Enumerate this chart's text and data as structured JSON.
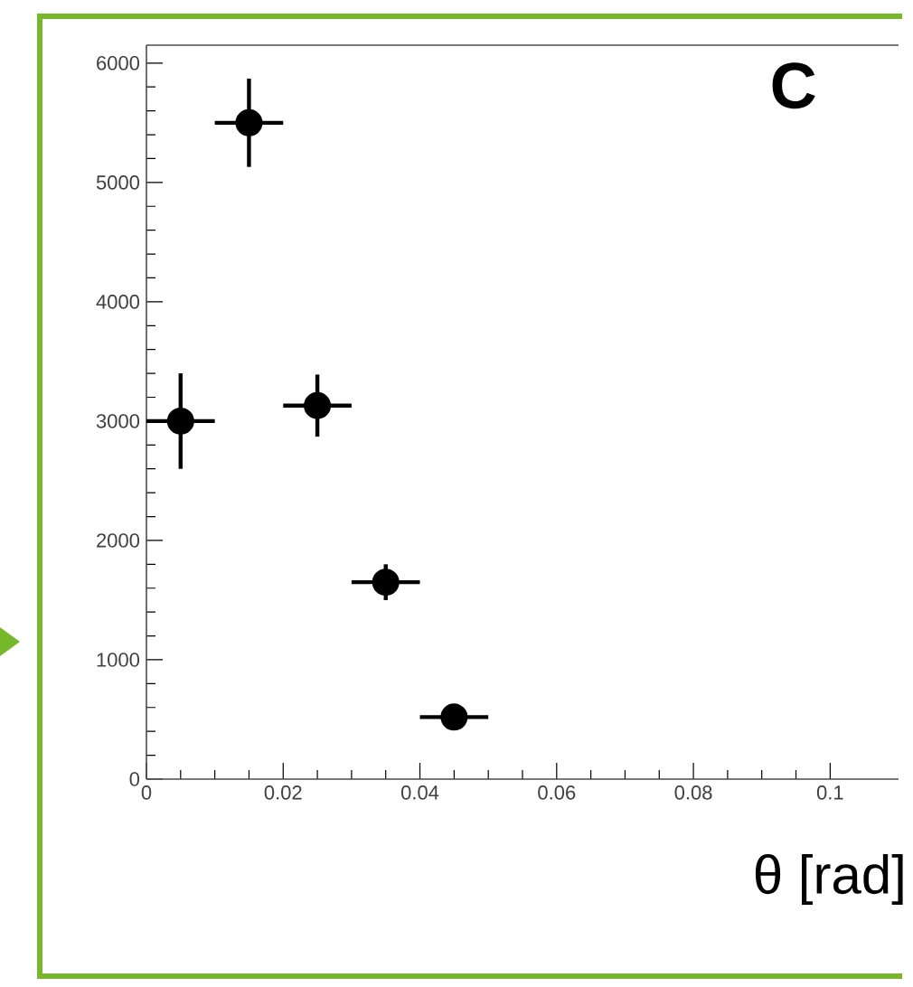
{
  "chart_data": {
    "type": "scatter",
    "x": [
      0.005,
      0.015,
      0.025,
      0.035,
      0.045
    ],
    "values": [
      3000,
      5500,
      3130,
      1650,
      520
    ],
    "errors": [
      400,
      370,
      260,
      150,
      50
    ],
    "xerrors": [
      0.005,
      0.005,
      0.005,
      0.005,
      0.005
    ],
    "color": "#000000",
    "marker": "circle",
    "xlim": [
      0,
      0.11
    ],
    "ylim": [
      0,
      6150
    ],
    "xticks": [
      0,
      0.02,
      0.04,
      0.06,
      0.08,
      0.1
    ],
    "yticks": [
      0,
      1000,
      2000,
      3000,
      4000,
      5000,
      6000
    ],
    "xlabel": "θ [rad]",
    "annotations": [
      "C"
    ]
  }
}
